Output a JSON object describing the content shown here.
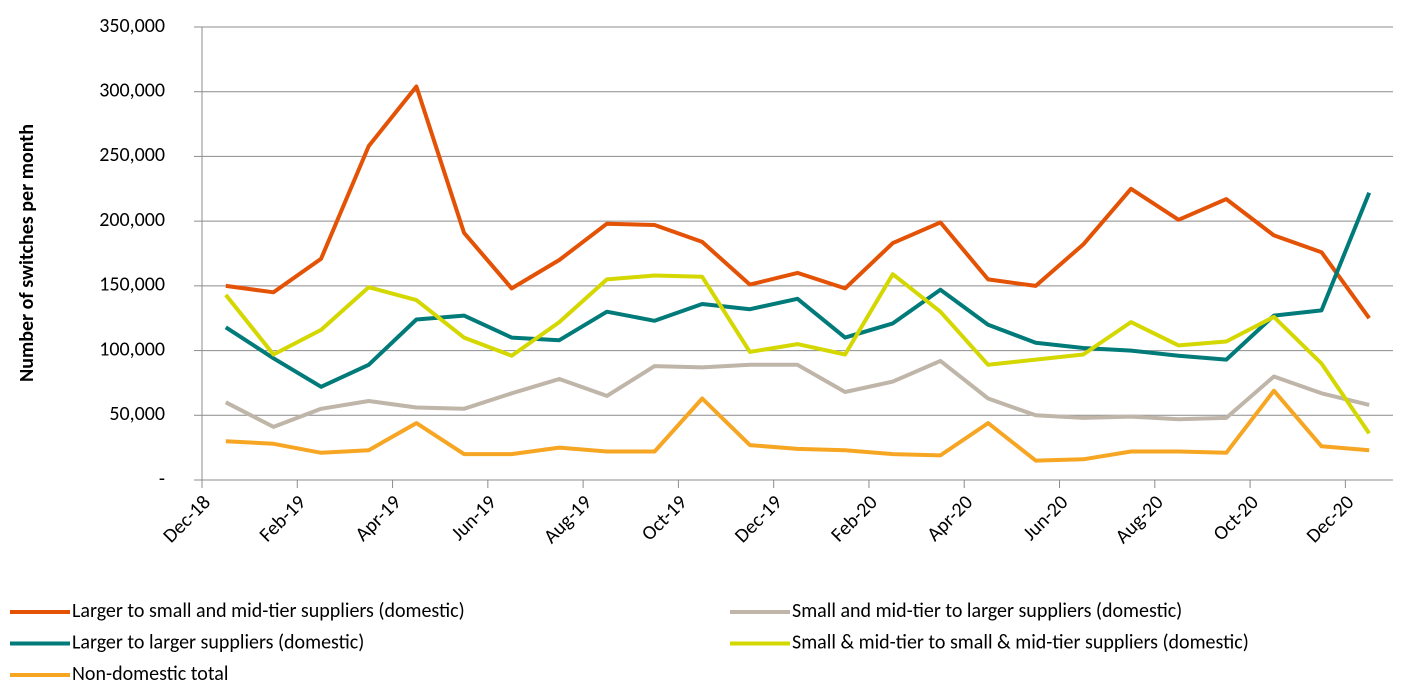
{
  "chart_data": {
    "type": "line",
    "y_label": "Number of switches per month",
    "categories": [
      "Dec-18",
      null,
      "Feb-19",
      null,
      "Apr-19",
      null,
      "Jun-19",
      null,
      "Aug-19",
      null,
      "Oct-19",
      null,
      "Dec-19",
      null,
      "Feb-20",
      null,
      "Apr-20",
      null,
      "Jun-20",
      null,
      "Aug-20",
      null,
      "Oct-20",
      null,
      "Dec-20"
    ],
    "series": [
      {
        "name": "Larger to small and mid-tier suppliers (domestic)",
        "color": "#e35205",
        "values": [
          150000,
          145000,
          171000,
          258000,
          304000,
          191000,
          148000,
          170000,
          198000,
          197000,
          184000,
          151000,
          160000,
          148000,
          183000,
          199000,
          155000,
          150000,
          182000,
          225000,
          201000,
          217000,
          189000,
          176000,
          125000
        ]
      },
      {
        "name": "Small and mid-tier to larger suppliers (domestic)",
        "color": "#bfb5a8",
        "values": [
          60000,
          41000,
          55000,
          61000,
          56000,
          55000,
          67000,
          78000,
          65000,
          88000,
          87000,
          89000,
          89000,
          68000,
          76000,
          92000,
          63000,
          50000,
          48000,
          49000,
          47000,
          48000,
          80000,
          67000,
          58000
        ]
      },
      {
        "name": "Larger to larger suppliers (domestic)",
        "color": "#007b7a",
        "values": [
          118000,
          94000,
          72000,
          89000,
          124000,
          127000,
          110000,
          108000,
          130000,
          123000,
          136000,
          132000,
          140000,
          110000,
          121000,
          147000,
          120000,
          106000,
          102000,
          100000,
          96000,
          93000,
          127000,
          131000,
          222000
        ]
      },
      {
        "name": "Small & mid-tier to small & mid-tier suppliers (domestic)",
        "color": "#d4d800",
        "values": [
          143000,
          97000,
          116000,
          149000,
          139000,
          110000,
          96000,
          122000,
          155000,
          158000,
          157000,
          99000,
          105000,
          97000,
          159000,
          130000,
          89000,
          93000,
          97000,
          122000,
          104000,
          107000,
          126000,
          90000,
          36000
        ]
      },
      {
        "name": "Non-domestic total",
        "color": "#f6a623",
        "values": [
          30000,
          28000,
          21000,
          23000,
          44000,
          20000,
          20000,
          25000,
          22000,
          22000,
          63000,
          27000,
          24000,
          23000,
          20000,
          19000,
          44000,
          15000,
          16000,
          22000,
          22000,
          21000,
          69000,
          26000,
          23000
        ]
      }
    ],
    "ylim": [
      0,
      350000
    ],
    "yticks": [
      {
        "value": 0,
        "label": "-"
      },
      {
        "value": 50000,
        "label": "50,000"
      },
      {
        "value": 100000,
        "label": "100,000"
      },
      {
        "value": 150000,
        "label": "150,000"
      },
      {
        "value": 200000,
        "label": "200,000"
      },
      {
        "value": 250000,
        "label": "250,000"
      },
      {
        "value": 300000,
        "label": "300,000"
      },
      {
        "value": 350000,
        "label": "350,000"
      }
    ],
    "grid": true
  }
}
